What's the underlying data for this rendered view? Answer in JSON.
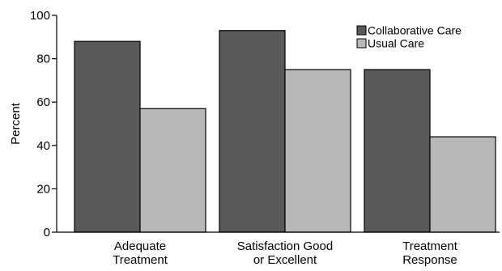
{
  "chart_data": {
    "type": "bar",
    "categories": [
      [
        "Adequate",
        "Treatment"
      ],
      [
        "Satisfaction Good",
        "or Excellent"
      ],
      [
        "Treatment",
        "Response"
      ]
    ],
    "series": [
      {
        "name": "Collaborative Care",
        "values": [
          88,
          93,
          75
        ],
        "color": "#595959"
      },
      {
        "name": "Usual Care",
        "values": [
          57,
          75,
          44
        ],
        "color": "#b8b8b8"
      }
    ],
    "title": "",
    "xlabel": "",
    "ylabel": "Percent",
    "ylim": [
      0,
      100
    ],
    "yticks": [
      0,
      20,
      40,
      60,
      80,
      100
    ],
    "grid": false,
    "legend_position": "top-right"
  }
}
